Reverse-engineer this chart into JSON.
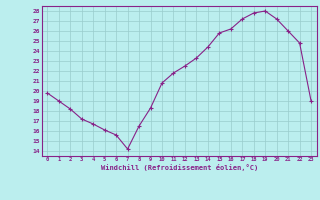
{
  "x": [
    0,
    1,
    2,
    3,
    4,
    5,
    6,
    7,
    8,
    9,
    10,
    11,
    12,
    13,
    14,
    15,
    16,
    17,
    18,
    19,
    20,
    21,
    22,
    23
  ],
  "y": [
    19.8,
    19.0,
    18.2,
    17.2,
    16.7,
    16.1,
    15.6,
    14.2,
    16.5,
    18.3,
    20.8,
    21.8,
    22.5,
    23.3,
    24.4,
    25.8,
    26.2,
    27.2,
    27.8,
    28.0,
    27.2,
    26.0,
    24.8,
    19.0
  ],
  "line_color": "#882288",
  "marker": "+",
  "bg_color": "#bbeeee",
  "grid_color": "#99cccc",
  "tick_label_color": "#882288",
  "xlabel": "Windchill (Refroidissement éolien,°C)",
  "ylabel_ticks": [
    14,
    15,
    16,
    17,
    18,
    19,
    20,
    21,
    22,
    23,
    24,
    25,
    26,
    27,
    28
  ],
  "xlim": [
    -0.5,
    23.5
  ],
  "ylim": [
    13.5,
    28.5
  ]
}
